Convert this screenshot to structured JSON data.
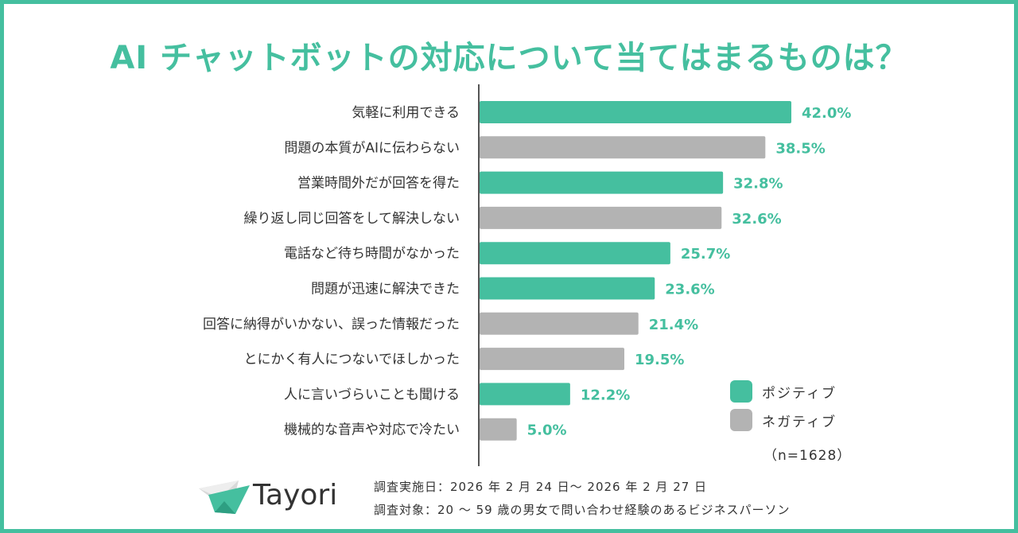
{
  "chart_data": {
    "type": "bar",
    "orientation": "horizontal",
    "title": "AI チャットボットの対応について当てはまるものは？",
    "xlim": [
      0,
      50
    ],
    "grid": false,
    "legend_position": "bottom-right",
    "categories": [
      "気軽に利用できる",
      "問題の本質がAIに伝わらない",
      "営業時間外だが回答を得た",
      "繰り返し同じ回答をして解決しない",
      "電話など待ち時間がなかった",
      "問題が迅速に解決できた",
      "回答に納得がいかない、誤った情報だった",
      "とにかく有人につないでほしかった",
      "人に言いづらいことも聞ける",
      "機械的な音声や対応で冷たい"
    ],
    "values": [
      42.0,
      38.5,
      32.8,
      32.6,
      25.7,
      23.6,
      21.4,
      19.5,
      12.2,
      5.0
    ],
    "value_labels": [
      "42.0%",
      "38.5%",
      "32.8%",
      "32.6%",
      "25.7%",
      "23.6%",
      "21.4%",
      "19.5%",
      "12.2%",
      "5.0%"
    ],
    "groups": [
      "positive",
      "negative",
      "positive",
      "negative",
      "positive",
      "positive",
      "negative",
      "negative",
      "positive",
      "negative"
    ],
    "legend": [
      {
        "key": "positive",
        "label": "ポジティブ",
        "color": "#45bf9f"
      },
      {
        "key": "negative",
        "label": "ネガティブ",
        "color": "#b3b3b3"
      }
    ],
    "label_color": "#45bf9f",
    "axis_color": "#555555",
    "sample_size": "（n=1628）"
  },
  "brand": {
    "name": "Tayori"
  },
  "footer": {
    "date": "調査実施日：2026 年 2 月 24 日〜 2026 年 2 月 27 日",
    "target": "調査対象：20 〜 59 歳の男女で問い合わせ経験のあるビジネスパーソン"
  },
  "colors": {
    "accent": "#45bf9f",
    "gray": "#b3b3b3",
    "text": "#333333"
  }
}
